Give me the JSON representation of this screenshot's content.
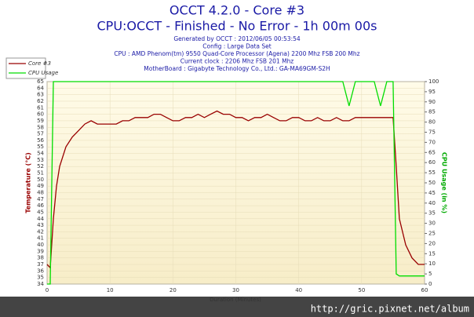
{
  "chart_data": {
    "type": "line",
    "title": "OCCT 4.2.0 - Core #3",
    "subtitle": "CPU:OCCT - Finished - No Error - 1h 00m 00s",
    "info": [
      "Generated by OCCT : 2012/06/05 00:53:54",
      "Config : Large Data Set",
      "CPU : AMD Phenom(tm) 9550 Quad-Core Processor (Agena) 2200 Mhz FSB 200 Mhz",
      "Current clock : 2206 Mhz FSB 201 Mhz",
      "MotherBoard : Gigabyte Technology Co., Ltd.: GA-MA69GM-S2H"
    ],
    "x_label": "Duration (Minutes)",
    "y_label": "Temperature (°C)",
    "y2_label": "CPU Usage (in %)",
    "watermark": "http://gric.pixnet.net/album",
    "x": [
      0,
      0.5,
      1,
      1.5,
      2,
      3,
      4,
      5,
      6,
      7,
      8,
      9,
      10,
      11,
      12,
      13,
      14,
      15,
      16,
      17,
      18,
      19,
      20,
      21,
      22,
      23,
      24,
      25,
      26,
      27,
      28,
      29,
      30,
      31,
      32,
      33,
      34,
      35,
      36,
      37,
      38,
      39,
      40,
      41,
      42,
      43,
      44,
      45,
      46,
      47,
      48,
      49,
      50,
      51,
      52,
      53,
      54,
      55,
      55.5,
      56,
      57,
      58,
      59,
      60
    ],
    "series": [
      {
        "name": "Core #3",
        "color": "#990000",
        "values": [
          37,
          36.5,
          44,
          49,
          52,
          55,
          56.5,
          57.5,
          58.5,
          59,
          58.5,
          58.5,
          58.5,
          58.5,
          59,
          59,
          59.5,
          59.5,
          59.5,
          60,
          60,
          59.5,
          59,
          59,
          59.5,
          59.5,
          60,
          59.5,
          60,
          60.5,
          60,
          60,
          59.5,
          59.5,
          59,
          59.5,
          59.5,
          60,
          59.5,
          59,
          59,
          59.5,
          59.5,
          59,
          59,
          59.5,
          59,
          59,
          59.5,
          59,
          59,
          59.5,
          59.5,
          59.5,
          59.5,
          59.5,
          59.5,
          59.5,
          52,
          44,
          40,
          38,
          37,
          37
        ]
      },
      {
        "name": "CPU Usage",
        "color": "#00dd00",
        "axis": "y2",
        "values": [
          0,
          0,
          100,
          100,
          100,
          100,
          100,
          100,
          100,
          100,
          100,
          100,
          100,
          100,
          100,
          100,
          100,
          100,
          100,
          100,
          100,
          100,
          100,
          100,
          100,
          100,
          100,
          100,
          100,
          100,
          100,
          100,
          100,
          100,
          100,
          100,
          100,
          100,
          100,
          100,
          100,
          100,
          100,
          100,
          100,
          100,
          100,
          100,
          100,
          100,
          88,
          100,
          100,
          100,
          100,
          88,
          100,
          100,
          5,
          4,
          4,
          4,
          4,
          4
        ]
      }
    ],
    "xlim": [
      0,
      60
    ],
    "xticks": [
      0,
      10,
      20,
      30,
      40,
      50,
      60
    ],
    "ylim": [
      34,
      65
    ],
    "yticks": [
      34,
      35,
      36,
      37,
      38,
      39,
      40,
      41,
      42,
      43,
      44,
      45,
      46,
      47,
      48,
      49,
      50,
      51,
      52,
      53,
      54,
      55,
      56,
      57,
      58,
      59,
      60,
      61,
      62,
      63,
      64,
      65
    ],
    "y2lim": [
      0,
      100
    ],
    "y2ticks": [
      0,
      5,
      10,
      15,
      20,
      25,
      30,
      35,
      40,
      45,
      50,
      55,
      60,
      65,
      70,
      75,
      80,
      85,
      90,
      95,
      100
    ],
    "grid": true
  }
}
